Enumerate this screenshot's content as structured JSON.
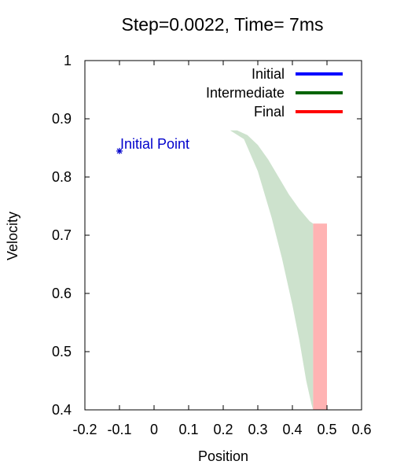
{
  "chart_data": {
    "type": "area",
    "title": "Step=0.0022, Time= 7ms",
    "xlabel": "Position",
    "ylabel": "Velocity",
    "xlim": [
      -0.2,
      0.6
    ],
    "ylim": [
      0.4,
      1.0
    ],
    "xticks": [
      -0.2,
      -0.1,
      0,
      0.1,
      0.2,
      0.3,
      0.4,
      0.5,
      0.6
    ],
    "xtick_labels": [
      "-0.2",
      "-0.1",
      "0",
      "0.1",
      "0.2",
      "0.3",
      "0.4",
      "0.5",
      "0.6"
    ],
    "yticks": [
      0.4,
      0.5,
      0.6,
      0.7,
      0.8,
      0.9,
      1.0
    ],
    "ytick_labels": [
      "0.4",
      "0.5",
      "0.6",
      "0.7",
      "0.8",
      "0.9",
      "1"
    ],
    "grid": false,
    "legend_position": "top-right",
    "legend": [
      {
        "label": "Initial",
        "color": "#0000ff"
      },
      {
        "label": "Intermediate",
        "color": "#006400"
      },
      {
        "label": "Final",
        "color": "#ff0000"
      }
    ],
    "annotations": [
      {
        "text": "Initial Point",
        "x": -0.1,
        "y": 0.85,
        "color": "#0000cc"
      }
    ],
    "initial_point": {
      "x": -0.1,
      "y": 0.85,
      "color": "#0000cc"
    },
    "series": [
      {
        "role": "intermediate-region",
        "color": "#cde2cd",
        "upper": [
          {
            "x": 0.22,
            "y": 0.88
          },
          {
            "x": 0.24,
            "y": 0.88
          },
          {
            "x": 0.27,
            "y": 0.872
          },
          {
            "x": 0.3,
            "y": 0.855
          },
          {
            "x": 0.33,
            "y": 0.83
          },
          {
            "x": 0.36,
            "y": 0.8
          },
          {
            "x": 0.39,
            "y": 0.77
          },
          {
            "x": 0.42,
            "y": 0.745
          },
          {
            "x": 0.45,
            "y": 0.724
          },
          {
            "x": 0.46,
            "y": 0.72
          }
        ],
        "lower": [
          {
            "x": 0.22,
            "y": 0.88
          },
          {
            "x": 0.26,
            "y": 0.865
          },
          {
            "x": 0.3,
            "y": 0.81
          },
          {
            "x": 0.34,
            "y": 0.73
          },
          {
            "x": 0.37,
            "y": 0.66
          },
          {
            "x": 0.4,
            "y": 0.58
          },
          {
            "x": 0.42,
            "y": 0.52
          },
          {
            "x": 0.44,
            "y": 0.45
          },
          {
            "x": 0.455,
            "y": 0.41
          },
          {
            "x": 0.46,
            "y": 0.4
          }
        ]
      },
      {
        "role": "final-region",
        "color": "#ffb3b3",
        "x0": 0.46,
        "x1": 0.5,
        "y0": 0.4,
        "y1": 0.72
      }
    ]
  }
}
